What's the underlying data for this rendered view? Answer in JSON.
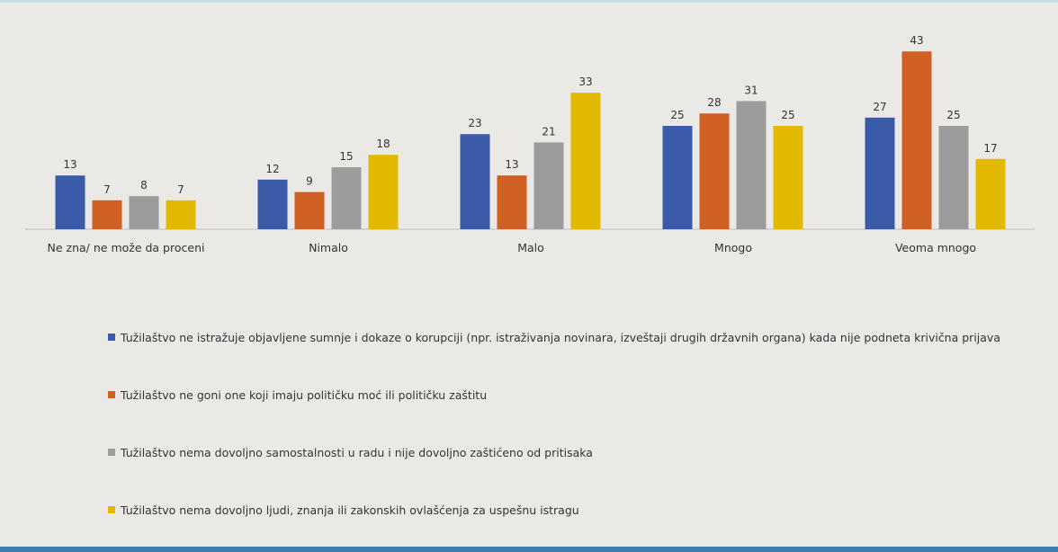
{
  "chart_data": {
    "type": "bar",
    "categories": [
      "Ne zna/ ne može da proceni",
      "Nimalo",
      "Malo",
      "Mnogo",
      "Veoma mnogo"
    ],
    "series": [
      {
        "name": "Tužilaštvo ne istražuje objavljene sumnje i dokaze o korupciji (npr. istraživanja novinara, izveštaji drugih državnih organa) kada nije podneta krivična prijava",
        "color": "#3a5ca8",
        "values": [
          13,
          12,
          23,
          25,
          27
        ]
      },
      {
        "name": "Tužilaštvo ne goni one koji imaju političku moć ili političku zaštitu",
        "color": "#cf5f22",
        "values": [
          7,
          9,
          13,
          28,
          43
        ]
      },
      {
        "name": "Tužilaštvo nema dovoljno samostalnosti u radu i nije dovoljno zaštićeno od pritisaka",
        "color": "#9c9c9c",
        "values": [
          8,
          15,
          21,
          31,
          25
        ]
      },
      {
        "name": "Tužilaštvo nema dovoljno ljudi, znanja ili zakonskih ovlašćenja za uspešnu istragu",
        "color": "#e3b900",
        "values": [
          7,
          18,
          33,
          25,
          17
        ]
      }
    ],
    "title": "",
    "xlabel": "",
    "ylabel": "",
    "ylim": [
      0,
      45
    ],
    "grid": false,
    "legend_position": "bottom"
  }
}
